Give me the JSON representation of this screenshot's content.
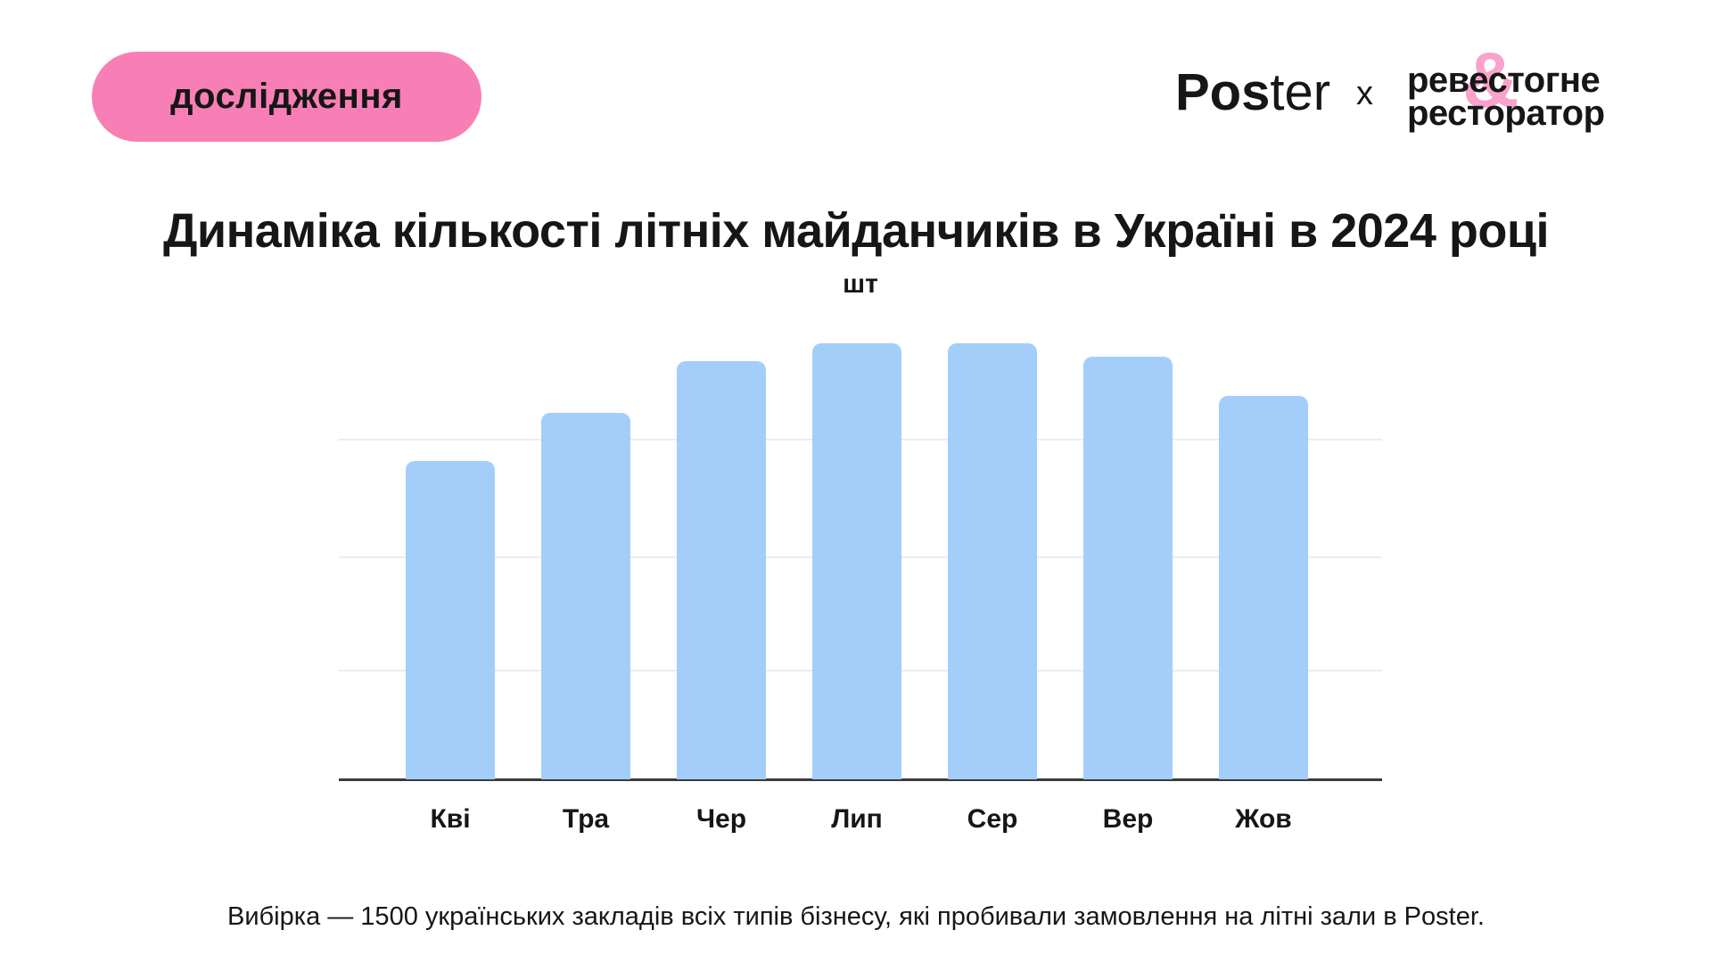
{
  "badge": {
    "label": "дослідження"
  },
  "header": {
    "poster_logo": {
      "bold_part": "Pos",
      "light_part": "ter"
    },
    "separator": "x",
    "partner_logo": {
      "line1_left": "реве",
      "line1_right": "стогне",
      "ampersand": "&",
      "line2": "ресторатор"
    }
  },
  "title": "Динаміка кількості літніх майданчиків в Україні в 2024 році",
  "chart_data": {
    "type": "bar",
    "title": "Динаміка кількості літніх майданчиків в Україні в 2024 році",
    "unit_label": "шт",
    "ylabel": "шт",
    "xlabel": "",
    "categories": [
      "Кві",
      "Тра",
      "Чер",
      "Лип",
      "Сер",
      "Вер",
      "Жов"
    ],
    "values": [
      73,
      84,
      96,
      100,
      100,
      97,
      88
    ],
    "values_note": "relative bar heights as % of tallest bar; chart shows no numeric value labels or y-axis ticks",
    "legend": false,
    "grid": "horizontal",
    "gridlines_pct_of_max": [
      25,
      51,
      78
    ],
    "bar_color": "#A3CEFA"
  },
  "footnote": "Вибірка — 1500 українських закладів всіх типів бізнесу, які пробивали замовлення на літні зали в Poster.",
  "colors": {
    "badge_pink": "#F87FB5",
    "ampersand_pink": "#F9A2CB",
    "bar_blue": "#A3CEFA",
    "gridline": "#ECECEC",
    "axis": "#3B3B3B",
    "text": "#161616"
  }
}
